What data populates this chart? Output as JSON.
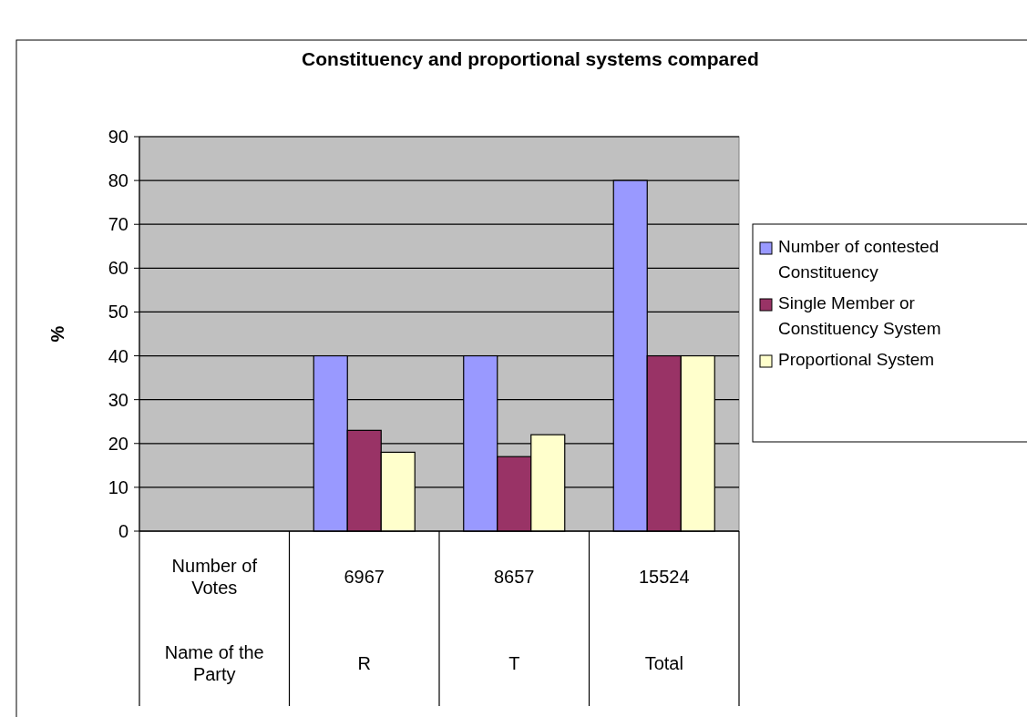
{
  "chart_data": {
    "type": "bar",
    "title": "Constituency  and proportional systems compared",
    "ylabel": "%",
    "categories": [
      "Number of Votes\nName of the Party",
      "6967\nR",
      "8657\nT",
      "15524\nTotal"
    ],
    "series": [
      {
        "name": "Number of contested Constituency",
        "color": "#9999ff",
        "values": [
          null,
          40,
          40,
          80
        ]
      },
      {
        "name": "Single Member or Constituency System",
        "color": "#993366",
        "values": [
          null,
          23,
          17,
          40
        ]
      },
      {
        "name": "Proportional System",
        "color": "#ffffcc",
        "values": [
          null,
          18,
          22,
          40
        ]
      }
    ],
    "ylim": [
      0,
      90
    ],
    "yticks": [
      0,
      10,
      20,
      30,
      40,
      50,
      60,
      70,
      80,
      90
    ],
    "grid": "y",
    "legend": "right"
  }
}
